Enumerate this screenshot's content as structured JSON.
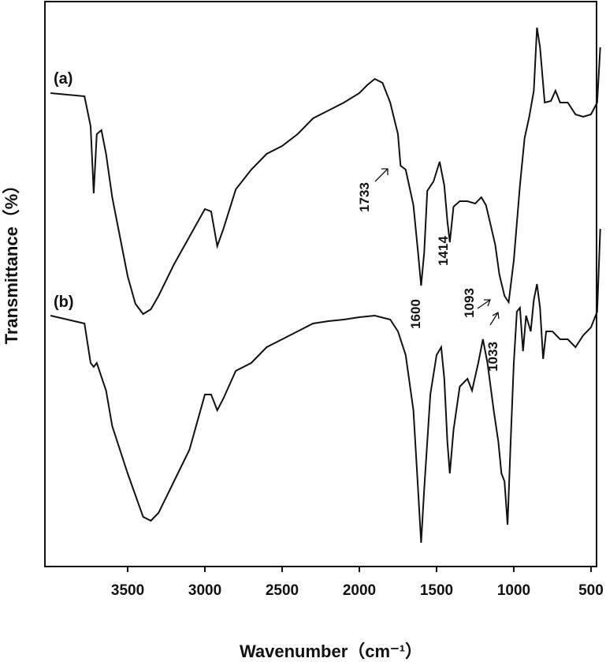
{
  "chart_data": {
    "type": "line",
    "x_label": "Wavenumber（cm⁻¹）",
    "y_label": "Transmittance（%）",
    "xlim": [
      4036,
      464
    ],
    "ylim": [
      0,
      716
    ],
    "xticks": [
      3500,
      3000,
      2500,
      2000,
      1500,
      1000,
      500
    ],
    "color": "#111111",
    "series": [
      {
        "name": "(a)",
        "x": [
          4000,
          3780,
          3740,
          3720,
          3700,
          3670,
          3640,
          3600,
          3550,
          3500,
          3450,
          3400,
          3350,
          3300,
          3200,
          3100,
          3000,
          2960,
          2920,
          2880,
          2800,
          2700,
          2600,
          2500,
          2400,
          2300,
          2200,
          2100,
          2000,
          1950,
          1900,
          1850,
          1800,
          1750,
          1733,
          1700,
          1650,
          1620,
          1600,
          1580,
          1560,
          1520,
          1480,
          1450,
          1430,
          1414,
          1390,
          1350,
          1300,
          1250,
          1210,
          1180,
          1150,
          1120,
          1093,
          1060,
          1033,
          1000,
          960,
          930,
          900,
          870,
          850,
          830,
          800,
          760,
          730,
          700,
          650,
          600,
          550,
          500,
          460,
          440
        ],
        "values": [
          600,
          596,
          558,
          473,
          548,
          553,
          523,
          468,
          418,
          368,
          333,
          320,
          326,
          343,
          383,
          418,
          453,
          450,
          406,
          428,
          478,
          503,
          523,
          533,
          548,
          568,
          578,
          588,
          600,
          610,
          618,
          613,
          588,
          548,
          508,
          503,
          458,
          398,
          356,
          398,
          476,
          488,
          513,
          483,
          438,
          411,
          456,
          463,
          463,
          460,
          468,
          458,
          433,
          408,
          370,
          343,
          335,
          388,
          483,
          543,
          570,
          603,
          683,
          658,
          588,
          590,
          603,
          588,
          588,
          573,
          570,
          573,
          588,
          658
        ]
      },
      {
        "name": "(b)",
        "x": [
          4000,
          3780,
          3740,
          3720,
          3700,
          3640,
          3600,
          3500,
          3400,
          3350,
          3300,
          3200,
          3100,
          3000,
          2960,
          2920,
          2880,
          2800,
          2700,
          2600,
          2500,
          2400,
          2300,
          2200,
          2100,
          2000,
          1900,
          1800,
          1750,
          1700,
          1650,
          1620,
          1600,
          1580,
          1540,
          1500,
          1470,
          1450,
          1430,
          1414,
          1390,
          1350,
          1300,
          1270,
          1230,
          1200,
          1170,
          1130,
          1100,
          1080,
          1060,
          1040,
          1020,
          1000,
          980,
          960,
          940,
          920,
          890,
          870,
          850,
          830,
          810,
          790,
          750,
          700,
          650,
          600,
          550,
          500,
          460,
          440
        ],
        "values": [
          318,
          308,
          258,
          253,
          258,
          223,
          178,
          118,
          63,
          58,
          68,
          108,
          148,
          218,
          218,
          198,
          213,
          248,
          258,
          278,
          288,
          298,
          308,
          311,
          313,
          316,
          318,
          313,
          298,
          268,
          198,
          98,
          30,
          98,
          218,
          268,
          278,
          238,
          158,
          118,
          173,
          228,
          238,
          223,
          258,
          288,
          258,
          198,
          158,
          118,
          108,
          53,
          158,
          258,
          323,
          328,
          273,
          318,
          298,
          338,
          358,
          328,
          263,
          298,
          298,
          288,
          288,
          278,
          293,
          303,
          323,
          428
        ]
      }
    ],
    "annotations": [
      "1733",
      "1600",
      "1414",
      "1093",
      "1033"
    ]
  }
}
